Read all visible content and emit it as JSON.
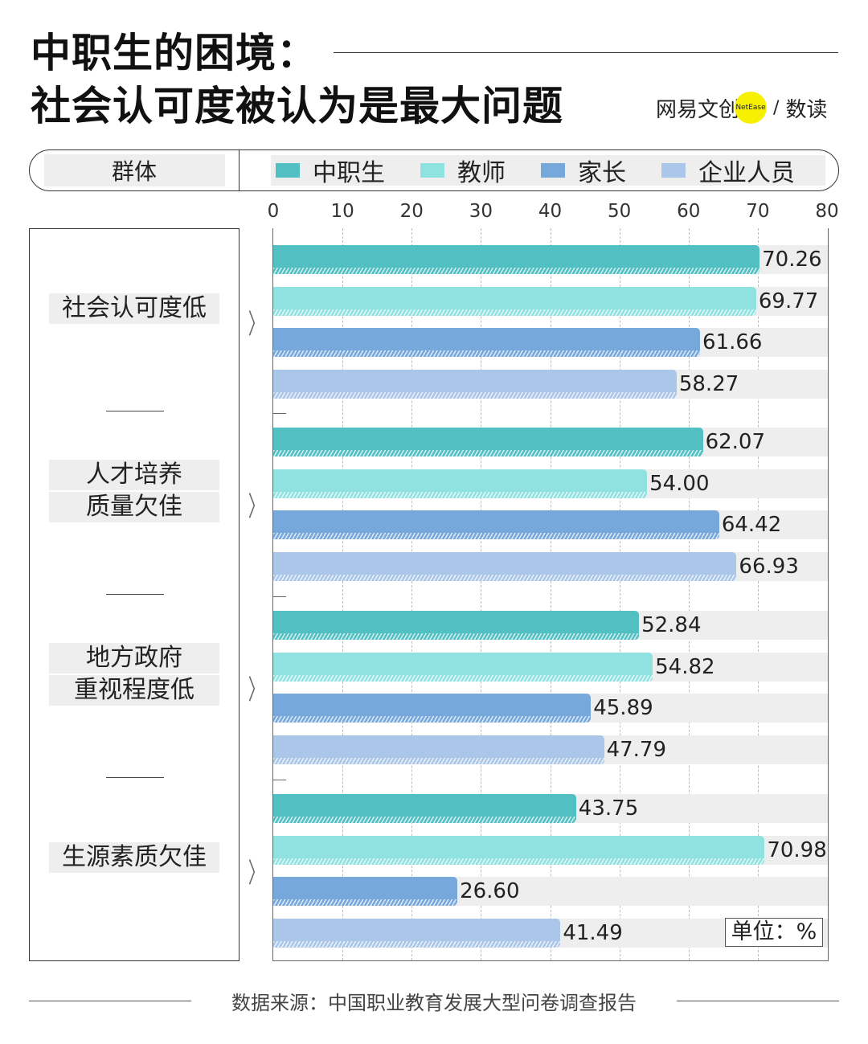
{
  "title_line1": "中职生的困境：",
  "title_line2": "社会认可度被认为是最大问题",
  "logo": {
    "text": "网易文创",
    "badge": "NetEase",
    "slash": "/",
    "product": "数读",
    "badge_color": "#f7f000"
  },
  "legend": {
    "group_label": "群体"
  },
  "unit_label": "单位：%",
  "source": "数据来源：中国职业教育发展大型问卷调查报告",
  "chart_data": {
    "type": "bar",
    "orientation": "horizontal",
    "categories": [
      [
        "社会认可度低"
      ],
      [
        "人才培养",
        "质量欠佳"
      ],
      [
        "地方政府",
        "重视程度低"
      ],
      [
        "生源素质欠佳"
      ]
    ],
    "series": [
      {
        "name": "中职生",
        "color": "#52bfc2",
        "values": [
          70.26,
          62.07,
          52.84,
          43.75
        ]
      },
      {
        "name": "教师",
        "color": "#90e2e0",
        "values": [
          69.77,
          54.0,
          54.82,
          70.98
        ]
      },
      {
        "name": "家长",
        "color": "#76a8db",
        "values": [
          61.66,
          64.42,
          45.89,
          26.6
        ]
      },
      {
        "name": "企业人员",
        "color": "#aac6e8",
        "values": [
          58.27,
          66.93,
          47.79,
          41.49
        ]
      }
    ],
    "xlim": [
      0,
      80
    ],
    "ticks": [
      0,
      10,
      20,
      30,
      40,
      50,
      60,
      70,
      80
    ],
    "grid": true,
    "legend_position": "top"
  }
}
